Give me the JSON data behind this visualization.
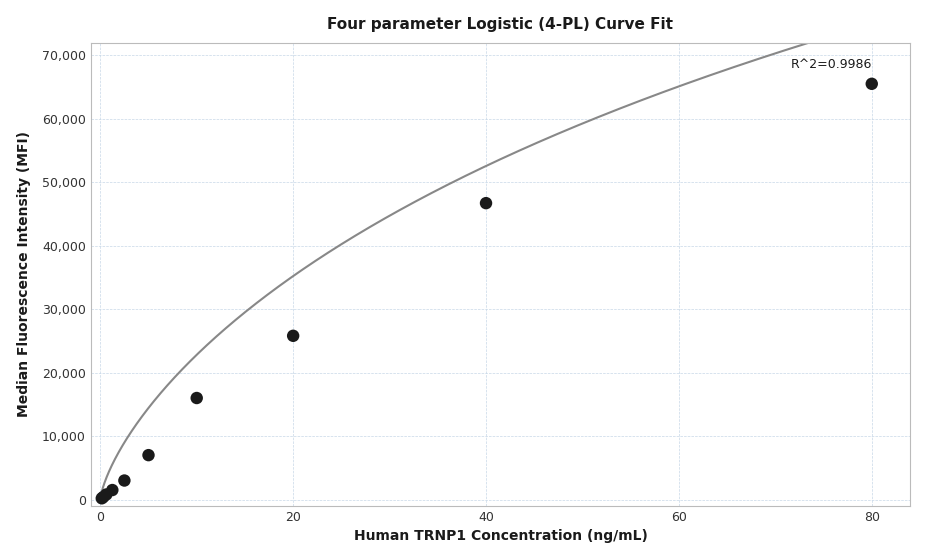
{
  "title": "Four parameter Logistic (4-PL) Curve Fit",
  "xlabel": "Human TRNP1 Concentration (ng/mL)",
  "ylabel": "Median Fluorescence Intensity (MFI)",
  "scatter_x": [
    0.156,
    0.313,
    0.625,
    1.25,
    2.5,
    5.0,
    10.0,
    20.0,
    40.0,
    80.0
  ],
  "scatter_y": [
    200,
    400,
    800,
    1500,
    3000,
    7000,
    16000,
    25800,
    46700,
    65500
  ],
  "r2_text": "R^2=0.9986",
  "r2_x": 80,
  "r2_y": 69500,
  "xlim": [
    -1,
    84
  ],
  "ylim": [
    -1000,
    72000
  ],
  "yticks": [
    0,
    10000,
    20000,
    30000,
    40000,
    50000,
    60000,
    70000
  ],
  "xticks": [
    0,
    20,
    40,
    60,
    80
  ],
  "curve_color": "#888888",
  "scatter_color": "#1a1a1a",
  "scatter_size": 80,
  "bg_color": "#ffffff",
  "grid_color": "#c8d8e8",
  "4pl_A": 0,
  "4pl_B": 0.72,
  "4pl_C": 200,
  "4pl_D": 220000
}
